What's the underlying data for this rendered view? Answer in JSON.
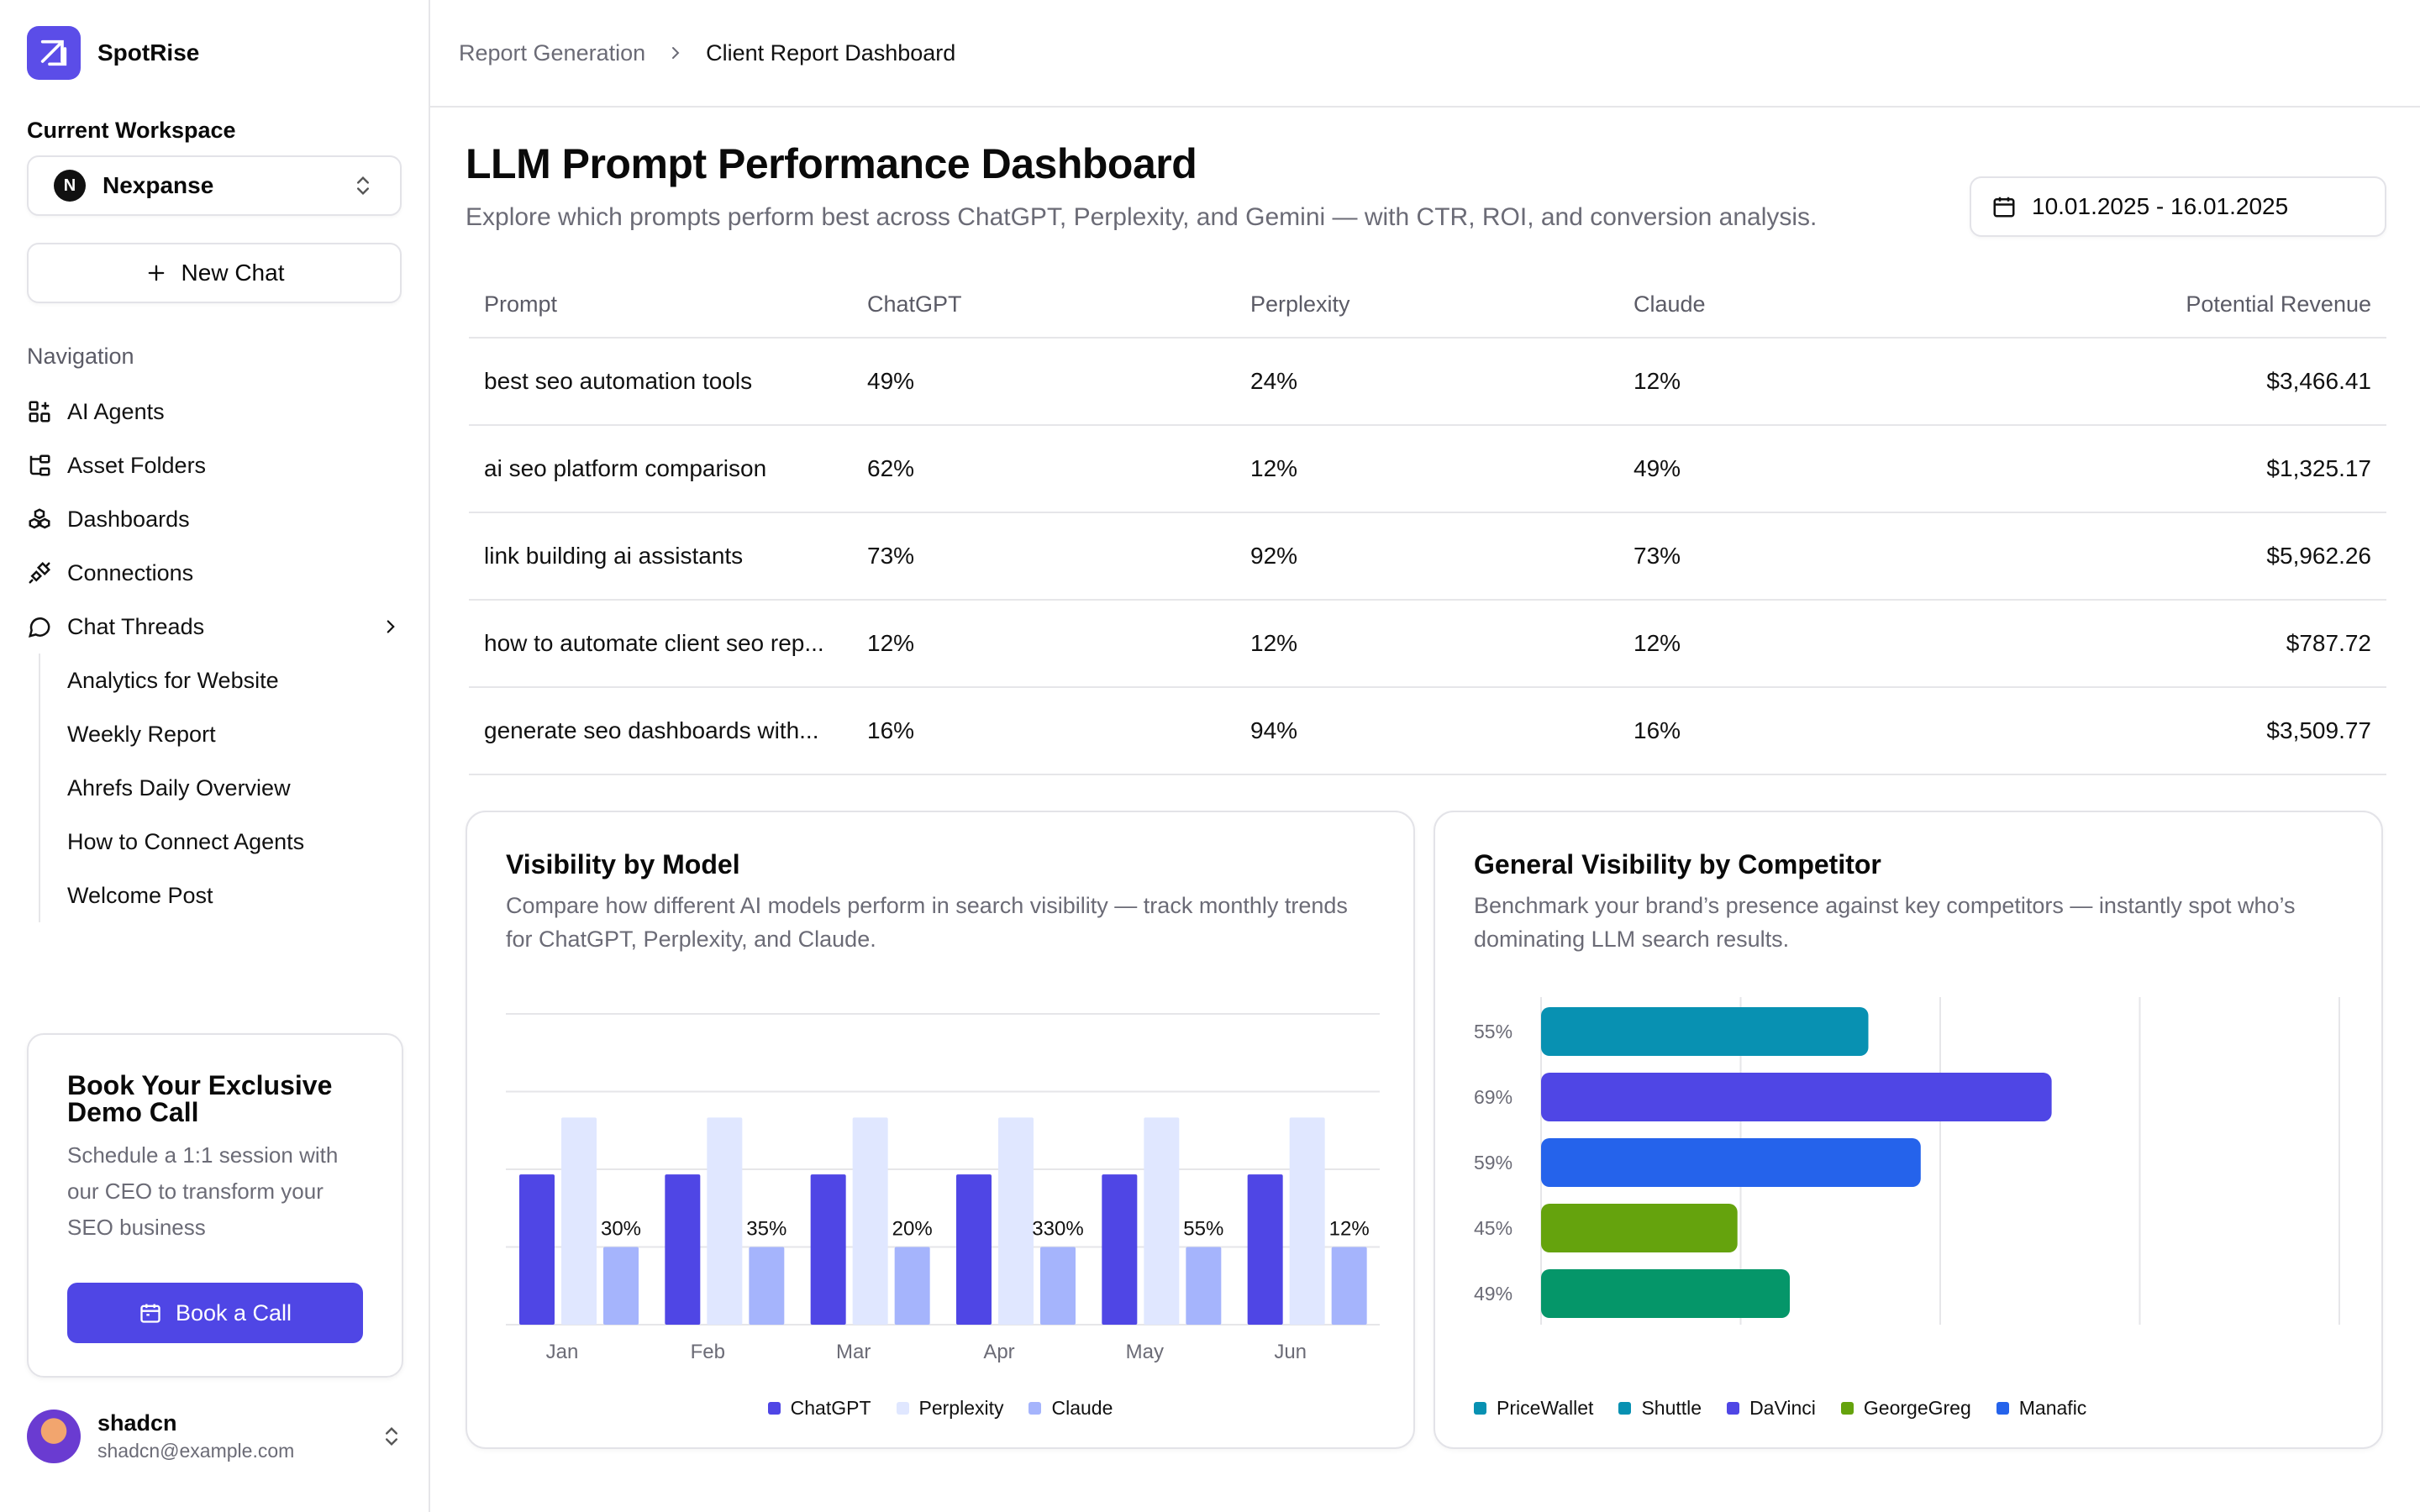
{
  "app": {
    "name": "SpotRise"
  },
  "sidebar": {
    "workspace_label": "Current Workspace",
    "workspace_initial": "N",
    "workspace_name": "Nexpanse",
    "new_chat": "New Chat",
    "nav_label": "Navigation",
    "nav": [
      {
        "label": "AI Agents",
        "icon": "grid-plus-icon"
      },
      {
        "label": "Asset Folders",
        "icon": "folder-tree-icon"
      },
      {
        "label": "Dashboards",
        "icon": "boxes-icon"
      },
      {
        "label": "Connections",
        "icon": "plug-icon"
      },
      {
        "label": "Chat Threads",
        "icon": "message-circle-icon"
      }
    ],
    "threads": [
      "Analytics for Website",
      "Weekly Report",
      "Ahrefs Daily Overview",
      "How to Connect Agents",
      "Welcome Post"
    ],
    "promo": {
      "title": "Book Your Exclusive Demo Call",
      "text": "Schedule a 1:1 session with our CEO to transform your SEO business",
      "button": "Book a Call"
    },
    "user": {
      "name": "shadcn",
      "email": "shadcn@example.com"
    }
  },
  "breadcrumb": {
    "parent": "Report Generation",
    "current": "Client Report Dashboard"
  },
  "page": {
    "title": "LLM Prompt Performance Dashboard",
    "subtitle": "Explore which prompts perform best across ChatGPT, Perplexity, and Gemini — with CTR, ROI, and conversion analysis.",
    "date_range": "10.01.2025 - 16.01.2025"
  },
  "table": {
    "headers": [
      "Prompt",
      "ChatGPT",
      "Perplexity",
      "Claude",
      "Potential Revenue"
    ],
    "rows": [
      [
        "best seo automation tools",
        "49%",
        "24%",
        "12%",
        "$3,466.41"
      ],
      [
        "ai seo platform comparison",
        "62%",
        "12%",
        "49%",
        "$1,325.17"
      ],
      [
        "link building ai assistants",
        "73%",
        "92%",
        "73%",
        "$5,962.26"
      ],
      [
        "how to automate client seo rep...",
        "12%",
        "12%",
        "12%",
        "$787.72"
      ],
      [
        "generate seo dashboards with...",
        "16%",
        "94%",
        "16%",
        "$3,509.77"
      ]
    ]
  },
  "cards": {
    "model": {
      "title": "Visibility by Model",
      "subtitle": "Compare how different AI models perform in search visibility — track monthly trends for ChatGPT, Perplexity, and Claude."
    },
    "competitor": {
      "title": "General Visibility by Competitor",
      "subtitle": "Benchmark your brand’s presence against key competitors — instantly spot who’s dominating LLM search results."
    }
  },
  "chart_data": [
    {
      "type": "bar",
      "categories": [
        "Jan",
        "Feb",
        "Mar",
        "Apr",
        "May",
        "Jun"
      ],
      "series": [
        {
          "name": "ChatGPT",
          "color": "#4f46e5",
          "values": [
            58,
            58,
            58,
            58,
            58,
            58
          ]
        },
        {
          "name": "Perplexity",
          "color": "#e0e7ff",
          "values": [
            80,
            80,
            80,
            80,
            80,
            80
          ]
        },
        {
          "name": "Claude",
          "color": "#a5b4fc",
          "values": [
            30,
            30,
            30,
            30,
            30,
            30
          ]
        }
      ],
      "data_labels": [
        "30%",
        "35%",
        "20%",
        "330%",
        "55%",
        "12%"
      ],
      "ylim": [
        0,
        120
      ],
      "grid": true,
      "legend": "bottom"
    },
    {
      "type": "bar",
      "orientation": "horizontal",
      "categories": [
        "55%",
        "69%",
        "59%",
        "45%",
        "49%"
      ],
      "values": [
        55,
        69,
        59,
        45,
        49
      ],
      "colors": [
        "#0891b2",
        "#4f46e5",
        "#2563eb",
        "#65a30d",
        "#059669"
      ],
      "xlim": [
        30,
        80
      ],
      "legend": "bottom",
      "legend_entries": [
        {
          "name": "PriceWallet",
          "color": "#0891b2"
        },
        {
          "name": "Shuttle",
          "color": "#0891b2"
        },
        {
          "name": "DaVinci",
          "color": "#4f46e5"
        },
        {
          "name": "GeorgeGreg",
          "color": "#65a30d"
        },
        {
          "name": "Manafic",
          "color": "#2563eb"
        }
      ]
    }
  ]
}
